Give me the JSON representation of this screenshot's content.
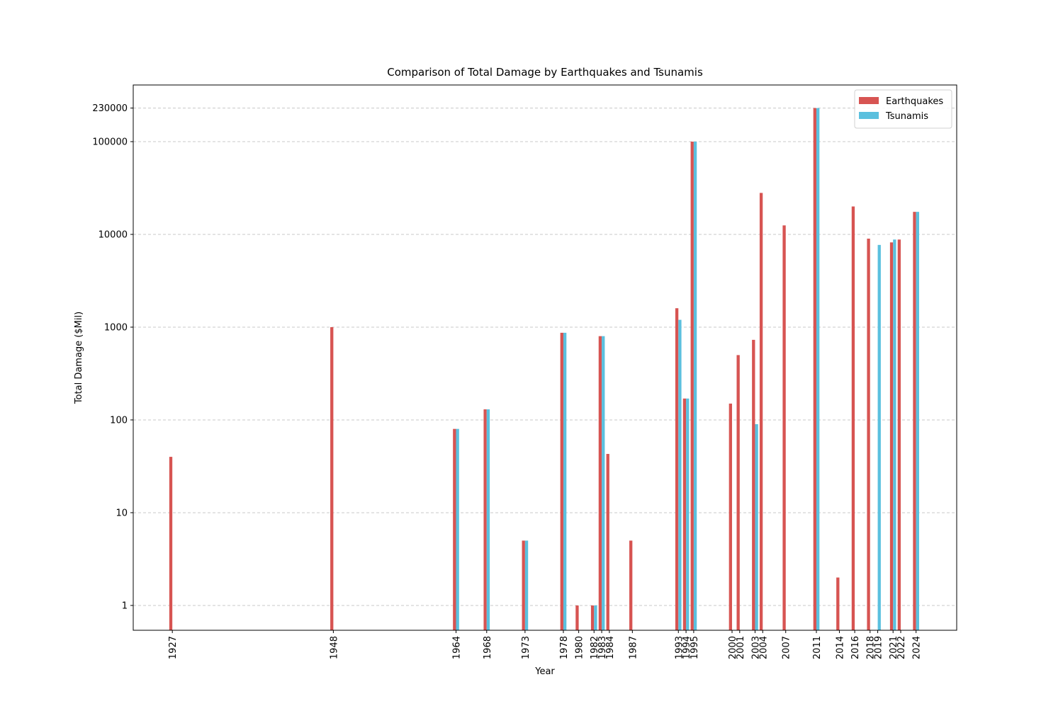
{
  "chart_data": {
    "type": "bar",
    "title": "Comparison of Total Damage by Earthquakes and Tsunamis",
    "xlabel": "Year",
    "ylabel": "Total Damage ($Mil)",
    "x": [
      1927,
      1948,
      1964,
      1968,
      1973,
      1978,
      1980,
      1982,
      1983,
      1984,
      1987,
      1993,
      1994,
      1995,
      2000,
      2001,
      2003,
      2004,
      2007,
      2011,
      2014,
      2016,
      2018,
      2019,
      2021,
      2022,
      2024
    ],
    "series": [
      {
        "name": "Earthquakes",
        "color": "#d75452",
        "values": [
          40,
          1000,
          80,
          130,
          5,
          870,
          1,
          1,
          800,
          43,
          5,
          1600,
          170,
          100000,
          150,
          500,
          730,
          28000,
          12500,
          230000,
          2,
          20000,
          9000,
          null,
          8200,
          8800,
          17500
        ]
      },
      {
        "name": "Tsunamis",
        "color": "#5bc0de",
        "values": [
          null,
          null,
          80,
          130,
          5,
          870,
          null,
          1,
          800,
          null,
          null,
          1200,
          170,
          100000,
          null,
          null,
          90,
          null,
          null,
          230000,
          null,
          null,
          null,
          7700,
          8800,
          null,
          17500
        ]
      }
    ],
    "xlim": [
      1921.9,
      2029.3
    ],
    "ylim": [
      0.54,
      408000
    ],
    "log_scale_y": true,
    "yticks": [
      1,
      10,
      100,
      1000,
      10000,
      100000,
      230000
    ],
    "grid": true,
    "legend": "upper right"
  }
}
